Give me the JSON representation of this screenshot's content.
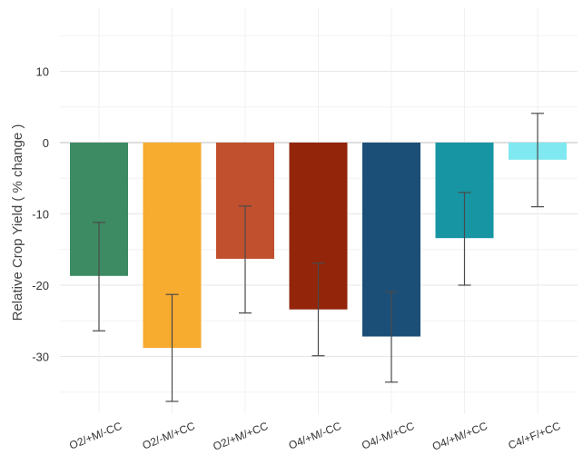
{
  "chart_data": {
    "type": "bar",
    "categories": [
      "O2/+M/-CC",
      "O2/-M/+CC",
      "O2/+M/+CC",
      "O4/+M/-CC",
      "O4/-M/+CC",
      "O4/+M/+CC",
      "C4/+F/+CC"
    ],
    "values": [
      -18.7,
      -28.8,
      -16.3,
      -23.4,
      -27.2,
      -13.4,
      -2.4
    ],
    "error_low": [
      -26.4,
      -36.3,
      -23.9,
      -29.9,
      -33.6,
      -20.0,
      -9.0
    ],
    "error_high": [
      -11.2,
      -21.3,
      -8.9,
      -16.9,
      -20.9,
      -7.0,
      4.1
    ],
    "colors": [
      "#3d8b63",
      "#f7ab2f",
      "#c0502e",
      "#92250a",
      "#1b4f78",
      "#1795a3",
      "#80e8f0"
    ],
    "ylabel": "Relative Crop Yield ( % change )",
    "xlabel": "",
    "title": "",
    "ylim": [
      -38,
      19
    ],
    "yticks": [
      10,
      0,
      -10,
      -20,
      -30
    ],
    "grid": true,
    "legend": "none"
  }
}
